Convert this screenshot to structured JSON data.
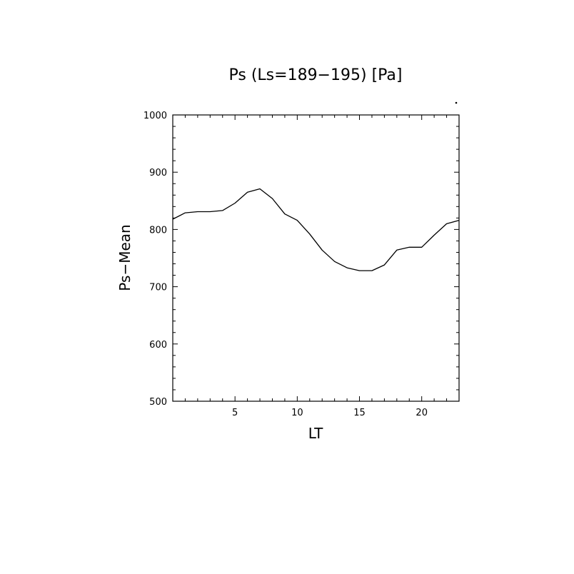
{
  "chart_data": {
    "type": "line",
    "title": "Ps (Ls=189−195) [Pa]",
    "xlabel": "LT",
    "ylabel": "Ps−Mean",
    "xlim": [
      0,
      23
    ],
    "ylim": [
      500,
      1000
    ],
    "x_ticks": [
      5,
      10,
      15,
      20
    ],
    "y_ticks": [
      500,
      600,
      700,
      800,
      900,
      1000
    ],
    "grid": false,
    "series": [
      {
        "x": [
          0,
          1,
          2,
          3,
          4,
          5,
          6,
          7,
          8,
          9,
          10,
          11,
          12,
          13,
          14,
          15,
          16,
          17,
          18,
          19,
          20,
          21,
          22,
          23
        ],
        "values": [
          818,
          829,
          831,
          831,
          833,
          846,
          865,
          871,
          854,
          827,
          816,
          792,
          764,
          744,
          733,
          728,
          728,
          738,
          764,
          769,
          769,
          790,
          810,
          816
        ]
      }
    ]
  }
}
